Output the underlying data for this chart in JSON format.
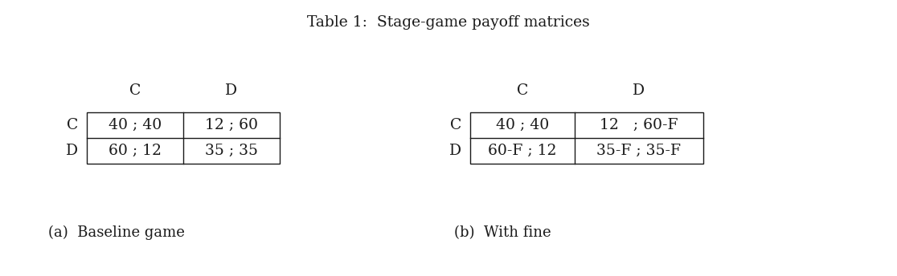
{
  "title": "Table 1:  Stage-game payoff matrices",
  "title_fontsize": 13.5,
  "left_table": {
    "col_headers": [
      "C",
      "D"
    ],
    "row_headers": [
      "C",
      "D"
    ],
    "cells": [
      [
        "40 ; 40",
        "12 ; 60"
      ],
      [
        "60 ; 12",
        "35 ; 35"
      ]
    ],
    "caption": "(a)  Baseline game"
  },
  "right_table": {
    "col_headers": [
      "C",
      "D"
    ],
    "row_headers": [
      "C",
      "D"
    ],
    "cells": [
      [
        "40 ; 40",
        "12   ; 60-F"
      ],
      [
        "60-F ; 12",
        "35-F ; 35-F"
      ]
    ],
    "caption": "(b)  With fine"
  },
  "text_color": "#1a1a1a",
  "line_color": "#1a1a1a",
  "bg_color": "#ffffff",
  "font_size": 13.5,
  "header_font_size": 13.5,
  "caption_font_size": 13.0,
  "lw": 1.0
}
